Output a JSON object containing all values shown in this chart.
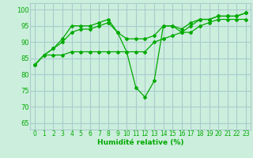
{
  "title": "",
  "xlabel": "Humidité relative (%)",
  "ylabel": "",
  "background_color": "#cceedd",
  "grid_color": "#aacccc",
  "line_color": "#00aa00",
  "xlim": [
    -0.5,
    23.5
  ],
  "ylim": [
    63,
    102
  ],
  "yticks": [
    65,
    70,
    75,
    80,
    85,
    90,
    95,
    100
  ],
  "xticks": [
    0,
    1,
    2,
    3,
    4,
    5,
    6,
    7,
    8,
    9,
    10,
    11,
    12,
    13,
    14,
    15,
    16,
    17,
    18,
    19,
    20,
    21,
    22,
    23
  ],
  "line1_x": [
    0,
    1,
    2,
    3,
    4,
    5,
    6,
    7,
    8,
    9,
    10,
    11,
    12,
    13,
    14,
    15,
    16,
    17,
    18,
    19,
    20,
    21,
    22,
    23
  ],
  "line1_y": [
    83,
    86,
    88,
    91,
    95,
    95,
    95,
    96,
    97,
    93,
    87,
    76,
    73,
    78,
    95,
    95,
    93,
    95,
    97,
    97,
    98,
    98,
    98,
    99
  ],
  "line2_x": [
    0,
    1,
    2,
    3,
    4,
    5,
    6,
    7,
    8,
    9,
    10,
    11,
    12,
    13,
    14,
    15,
    16,
    17,
    18,
    19,
    20,
    21,
    22,
    23
  ],
  "line2_y": [
    83,
    86,
    88,
    90,
    93,
    94,
    94,
    95,
    96,
    93,
    91,
    91,
    91,
    92,
    95,
    95,
    94,
    96,
    97,
    97,
    98,
    98,
    98,
    99
  ],
  "line3_x": [
    0,
    1,
    2,
    3,
    4,
    5,
    6,
    7,
    8,
    9,
    10,
    11,
    12,
    13,
    14,
    15,
    16,
    17,
    18,
    19,
    20,
    21,
    22,
    23
  ],
  "line3_y": [
    83,
    86,
    86,
    86,
    87,
    87,
    87,
    87,
    87,
    87,
    87,
    87,
    87,
    90,
    91,
    92,
    93,
    93,
    95,
    96,
    97,
    97,
    97,
    97
  ]
}
